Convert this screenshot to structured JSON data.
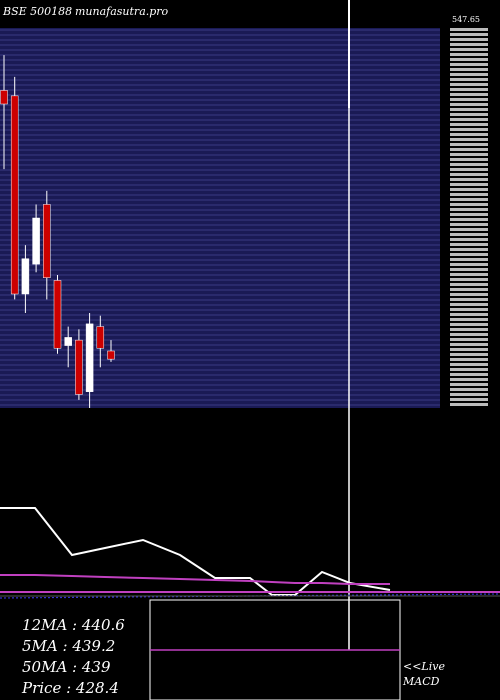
{
  "header": {
    "symbol": "BSE 500188",
    "site": "munafasutra.pro"
  },
  "colors": {
    "background": "#000000",
    "price_panel": "#1a1a55",
    "grid": "#5a5ab0",
    "bear_candle": "#cc0000",
    "bull_candle": "#ffffff",
    "line": "#ffffff",
    "ma_line": "#c040c0",
    "blue_line": "#3333cc"
  },
  "chart_data": [
    {
      "type": "candlestick",
      "title": "BSE 500188",
      "y_axis_top_label": "547.65",
      "candles": [
        {
          "open": 487,
          "high": 500,
          "low": 458,
          "close": 482
        },
        {
          "open": 485,
          "high": 492,
          "low": 410,
          "close": 412
        },
        {
          "open": 412,
          "high": 430,
          "low": 405,
          "close": 425
        },
        {
          "open": 423,
          "high": 445,
          "low": 420,
          "close": 440
        },
        {
          "open": 445,
          "high": 450,
          "low": 410,
          "close": 418
        },
        {
          "open": 417,
          "high": 419,
          "low": 390,
          "close": 392
        },
        {
          "open": 393,
          "high": 400,
          "low": 385,
          "close": 396
        },
        {
          "open": 395,
          "high": 399,
          "low": 373,
          "close": 375
        },
        {
          "open": 376,
          "high": 405,
          "low": 370,
          "close": 401
        },
        {
          "open": 400,
          "high": 404,
          "low": 385,
          "close": 392
        },
        {
          "open": 391,
          "high": 395,
          "low": 387,
          "close": 388
        }
      ],
      "ylim": [
        370,
        510
      ]
    },
    {
      "type": "line",
      "series": [
        {
          "values": [
            92,
            92,
            45,
            52,
            60,
            45,
            22,
            22,
            5,
            5,
            28,
            17,
            10
          ]
        },
        {
          "values": [
            25,
            25,
            24,
            23,
            22,
            21,
            20,
            19,
            18,
            17,
            17,
            16,
            16
          ]
        }
      ],
      "ylim": [
        0,
        100
      ]
    }
  ],
  "legend": {
    "ma12": "12MA : 440.6",
    "ma5": "5MA : 439.2",
    "ma50": "50MA : 439",
    "price": "Price   : 428.4"
  },
  "macd_link": "<<Live MACD"
}
